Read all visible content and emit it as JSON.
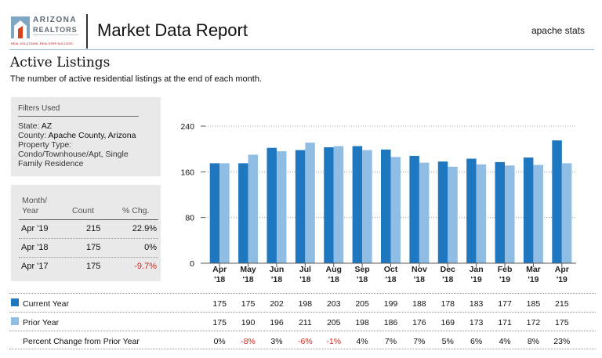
{
  "header": {
    "brand_name": "ARIZONA",
    "brand_sub": "REALTORS",
    "brand_tagline": "REAL SOLUTIONS. REALTOR® SUCCESS.",
    "title": "Market Data Report",
    "right_label": "apache stats"
  },
  "section": {
    "title": "Active Listings",
    "subtitle": "The number of active residential listings at the end of each month."
  },
  "filters": {
    "heading": "Filters Used",
    "state_label": "State:",
    "state": "AZ",
    "county_label": "County:",
    "county": "Apache County, Arizona",
    "property_type_label": "Property Type:",
    "property_type": "Condo/Townhouse/Apt, Single Family Residence"
  },
  "summary": {
    "col_month": "Month/ Year",
    "col_count": "Count",
    "col_change": "% Chg.",
    "rows": [
      {
        "month": "Apr '19",
        "count": "215",
        "change": "22.9%",
        "negative": false
      },
      {
        "month": "Apr '18",
        "count": "175",
        "change": "0%",
        "negative": false
      },
      {
        "month": "Apr '17",
        "count": "175",
        "change": "-9.7%",
        "negative": true
      }
    ]
  },
  "colors": {
    "current": "#1f77c0",
    "prior": "#8fbde3",
    "negative": "#cc2a1e"
  },
  "legend": {
    "current": "Current Year",
    "prior": "Prior Year",
    "pct": "Percent Change from Prior Year"
  },
  "chart_data": {
    "type": "bar",
    "categories": [
      "Apr '18",
      "May '18",
      "Jun '18",
      "Jul '18",
      "Aug '18",
      "Sep '18",
      "Oct '18",
      "Nov '18",
      "Dec '18",
      "Jan '19",
      "Feb '19",
      "Mar '19",
      "Apr '19"
    ],
    "series": [
      {
        "name": "Current Year",
        "values": [
          175,
          175,
          202,
          198,
          203,
          205,
          199,
          188,
          178,
          183,
          177,
          185,
          215
        ]
      },
      {
        "name": "Prior Year",
        "values": [
          175,
          190,
          196,
          211,
          205,
          198,
          186,
          176,
          169,
          173,
          171,
          172,
          175
        ]
      }
    ],
    "pct_change": [
      "0%",
      "-8%",
      "3%",
      "-6%",
      "-1%",
      "4%",
      "7%",
      "7%",
      "5%",
      "6%",
      "4%",
      "8%",
      "23%"
    ],
    "yticks": [
      0,
      80,
      160,
      240
    ],
    "ylim": [
      0,
      240
    ],
    "grid": true,
    "legend_position": "bottom table"
  }
}
